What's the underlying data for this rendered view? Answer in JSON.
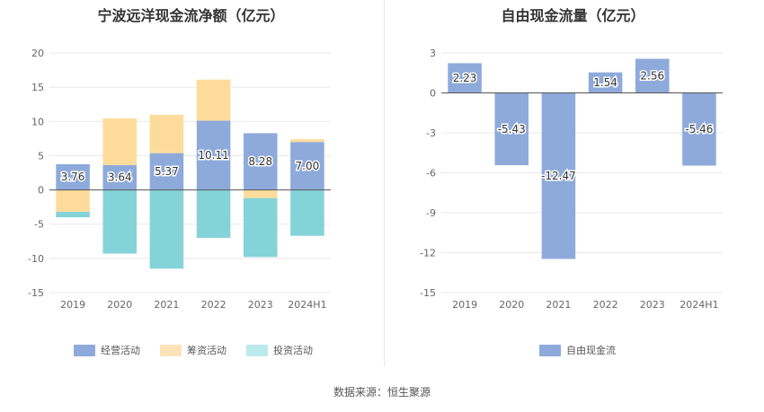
{
  "chart_data": [
    {
      "type": "bar",
      "stacked": true,
      "title": "宁波远洋现金流净额（亿元）",
      "categories": [
        "2019",
        "2020",
        "2021",
        "2022",
        "2023",
        "2024H1"
      ],
      "yticks": [
        20,
        15,
        10,
        5,
        0,
        -5,
        -10,
        -15
      ],
      "ylim": [
        -15,
        20
      ],
      "series": [
        {
          "name": "经营活动",
          "color": "#8eaadb",
          "values": [
            3.76,
            3.64,
            5.37,
            10.11,
            8.28,
            7.0
          ],
          "labels": [
            "3.76",
            "3.64",
            "5.37",
            "10.11",
            "8.28",
            "7.00"
          ]
        },
        {
          "name": "筹资活动",
          "color": "#fddc9b",
          "values": [
            -3.2,
            6.8,
            5.6,
            6.0,
            -1.2,
            0.4
          ]
        },
        {
          "name": "投资活动",
          "color": "#84d3d8",
          "values": [
            -0.8,
            -9.3,
            -11.5,
            -7.0,
            -8.6,
            -6.7
          ]
        }
      ],
      "legend_swatches": [
        "#8eaadb",
        "#fde3b8",
        "#bce9ec"
      ]
    },
    {
      "type": "bar",
      "title": "自由现金流量（亿元）",
      "categories": [
        "2019",
        "2020",
        "2021",
        "2022",
        "2023",
        "2024H1"
      ],
      "yticks": [
        3,
        0,
        -3,
        -6,
        -9,
        -12,
        -15
      ],
      "ylim": [
        -15,
        3
      ],
      "series": [
        {
          "name": "自由现金流",
          "color": "#8eaadb",
          "values": [
            2.23,
            -5.43,
            -12.47,
            1.54,
            2.56,
            -5.46
          ],
          "labels": [
            "2.23",
            "-5.43",
            "-12.47",
            "1.54",
            "2.56",
            "-5.46"
          ]
        }
      ]
    }
  ],
  "source": "数据来源：恒生聚源"
}
